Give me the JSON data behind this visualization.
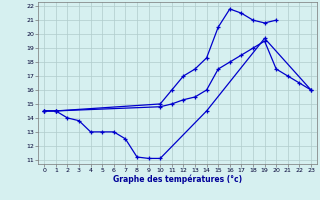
{
  "title": "Graphe des températures (°c)",
  "bg_color": "#d6f0f0",
  "grid_color": "#b0cccc",
  "line_color": "#0000cc",
  "x_min": 0,
  "x_max": 23,
  "y_min": 11,
  "y_max": 22,
  "series1_x": [
    0,
    1,
    2,
    3,
    4,
    5,
    6,
    7,
    8,
    9,
    10,
    14,
    19,
    23
  ],
  "series1_y": [
    14.5,
    14.5,
    14.0,
    13.8,
    13.0,
    13.0,
    13.0,
    12.5,
    11.2,
    11.1,
    11.1,
    14.5,
    19.7,
    16.0
  ],
  "series2_x": [
    0,
    1,
    10,
    11,
    12,
    13,
    14,
    15,
    16,
    17,
    18,
    19,
    20,
    21,
    22,
    23
  ],
  "series2_y": [
    14.5,
    14.5,
    14.8,
    15.0,
    15.3,
    15.5,
    16.0,
    17.5,
    18.0,
    18.5,
    19.0,
    19.5,
    17.5,
    17.0,
    16.5,
    16.0
  ],
  "series3_x": [
    0,
    1,
    10,
    11,
    12,
    13,
    14,
    15,
    16,
    17,
    18,
    19,
    20
  ],
  "series3_y": [
    14.5,
    14.5,
    15.0,
    16.0,
    17.0,
    17.5,
    18.3,
    20.5,
    21.8,
    21.5,
    21.0,
    20.8,
    21.0
  ]
}
